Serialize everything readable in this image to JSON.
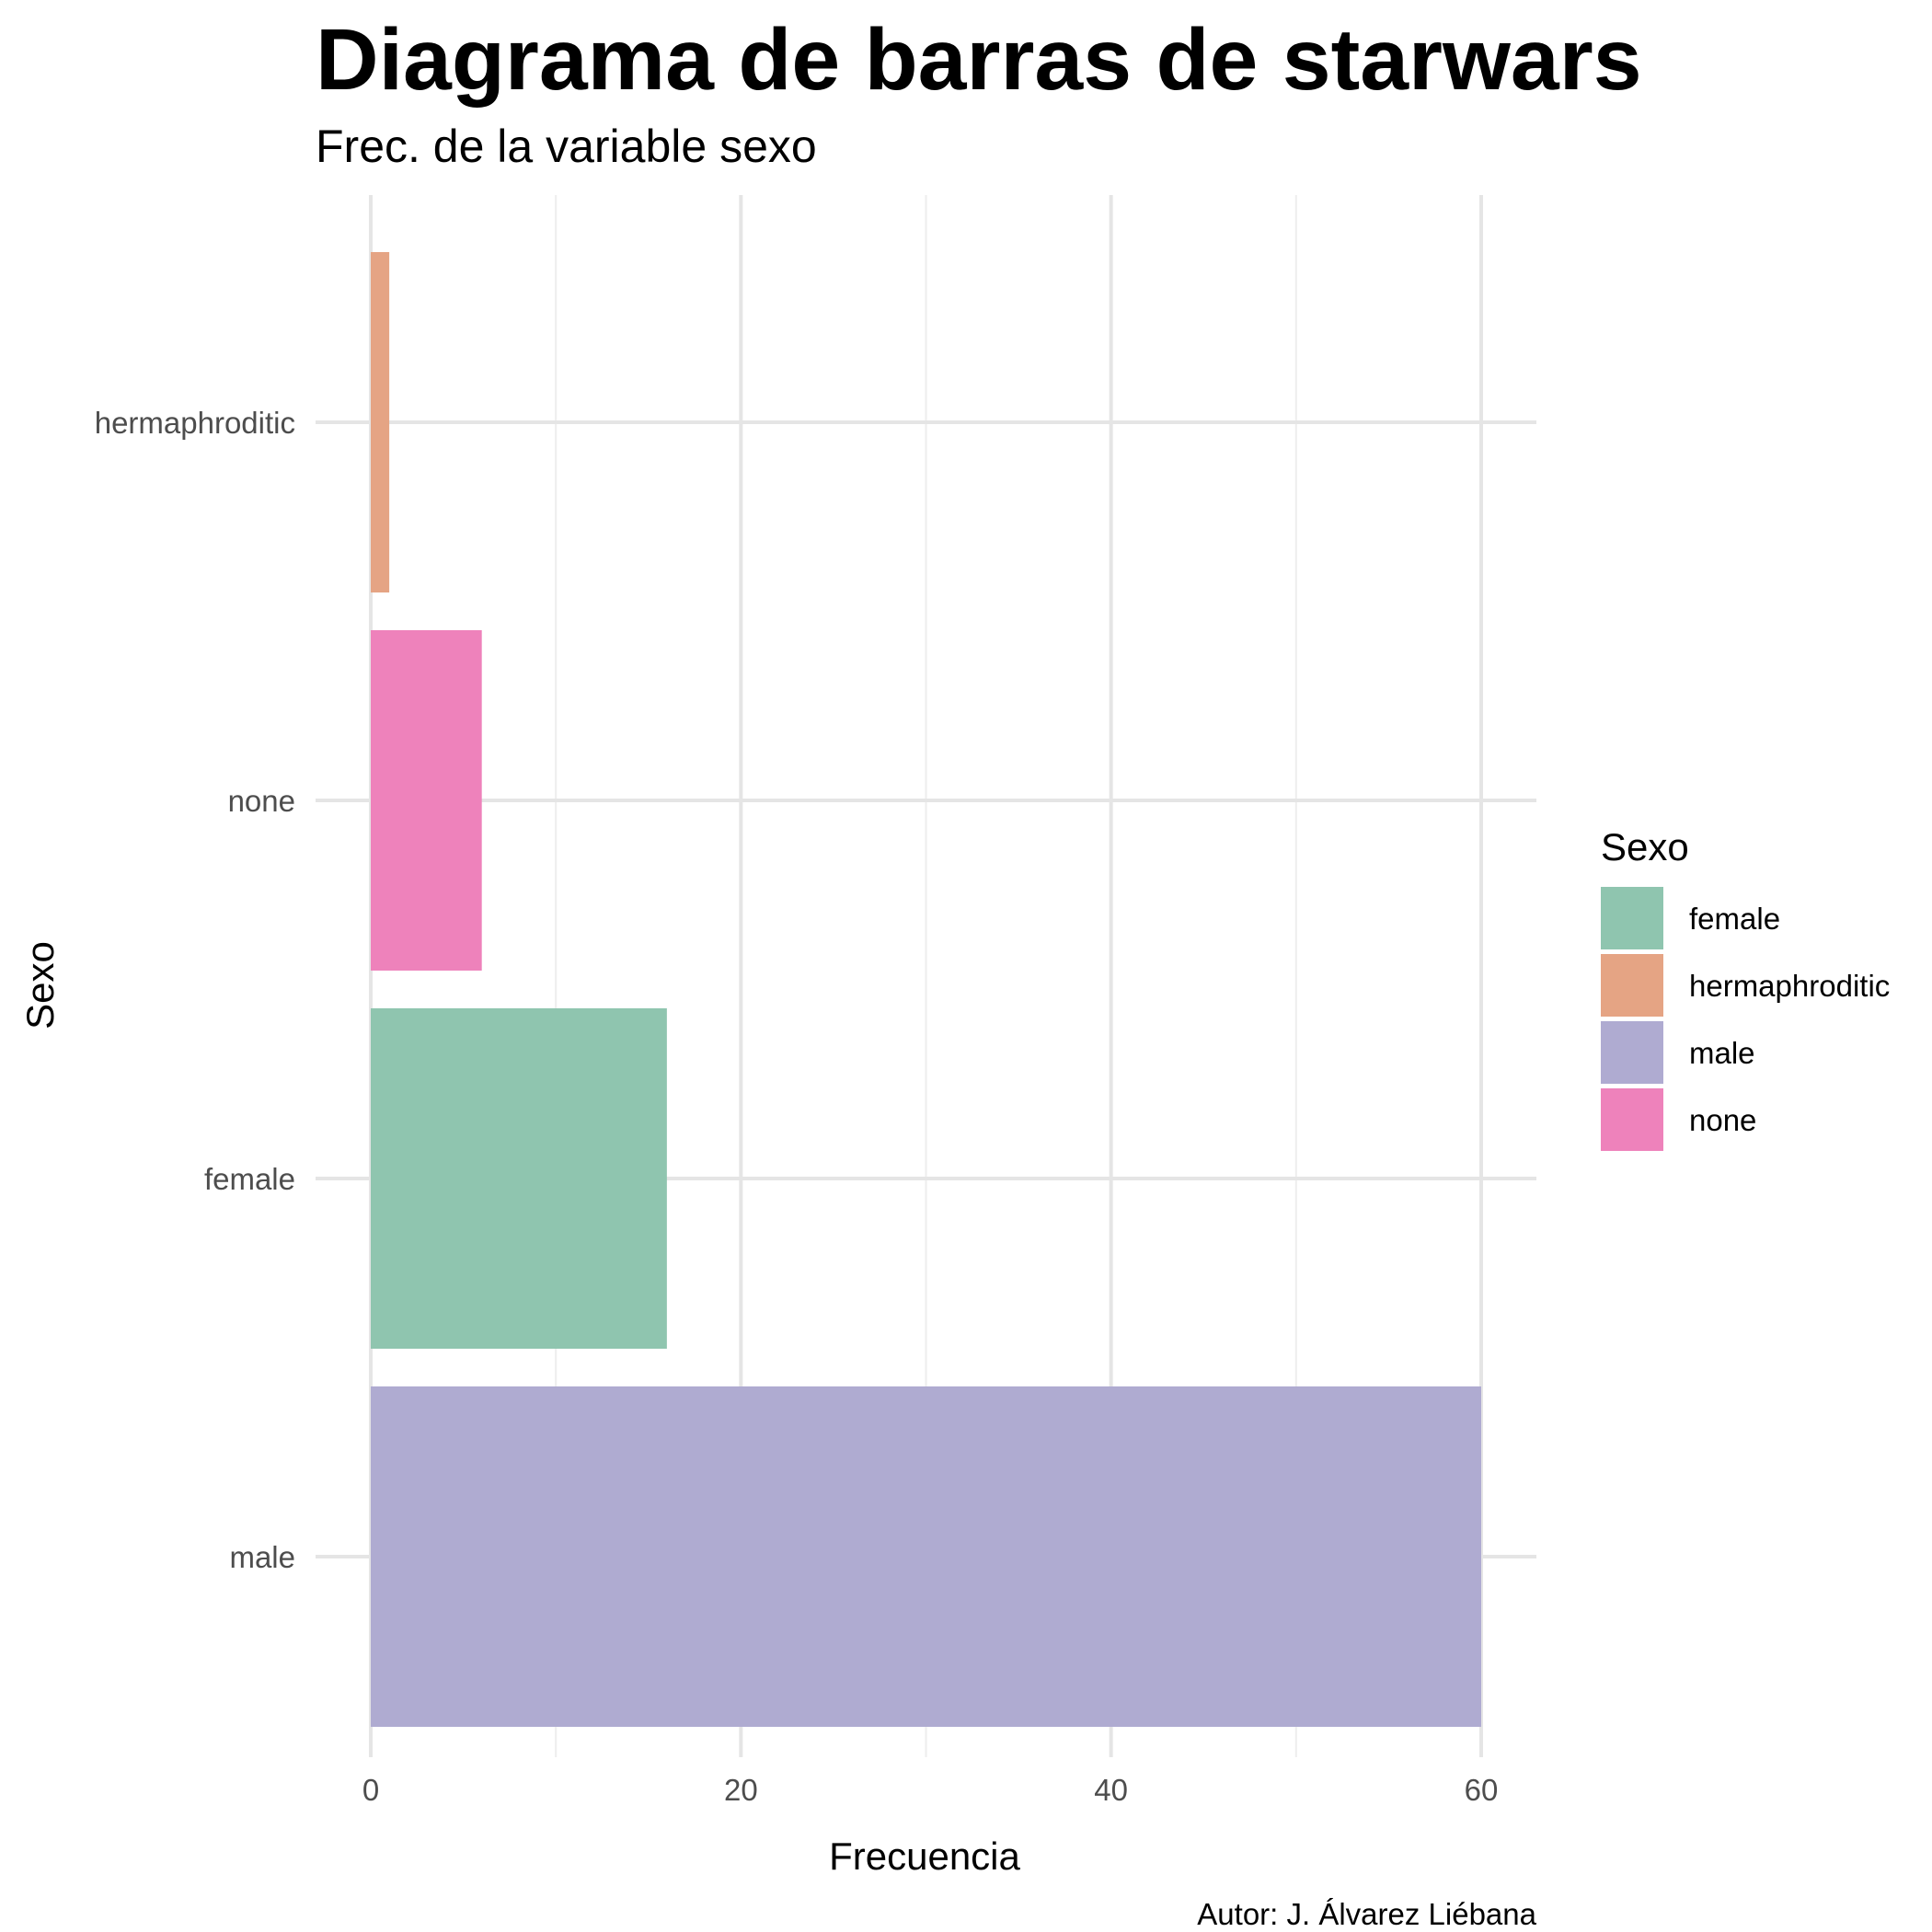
{
  "chart_data": {
    "type": "bar",
    "orientation": "horizontal",
    "title": "Diagrama de barras de starwars",
    "subtitle": "Frec. de la variable sexo",
    "xlabel": "Frecuencia",
    "ylabel": "Sexo",
    "caption": "Autor: J. Álvarez Liébana",
    "categories": [
      "male",
      "female",
      "none",
      "hermaphroditic"
    ],
    "values": [
      60,
      16,
      6,
      1
    ],
    "colors": {
      "female": "#8fc5af",
      "hermaphroditic": "#e5a484",
      "male": "#afabd1",
      "none": "#ee82bb"
    },
    "xlim": [
      0,
      63
    ],
    "xticks": [
      0,
      20,
      40,
      60
    ],
    "xticklabels": [
      "0",
      "20",
      "40",
      "60"
    ],
    "grid": true,
    "legend": {
      "title": "Sexo",
      "position": "right",
      "entries": [
        "female",
        "hermaphroditic",
        "male",
        "none"
      ]
    }
  }
}
